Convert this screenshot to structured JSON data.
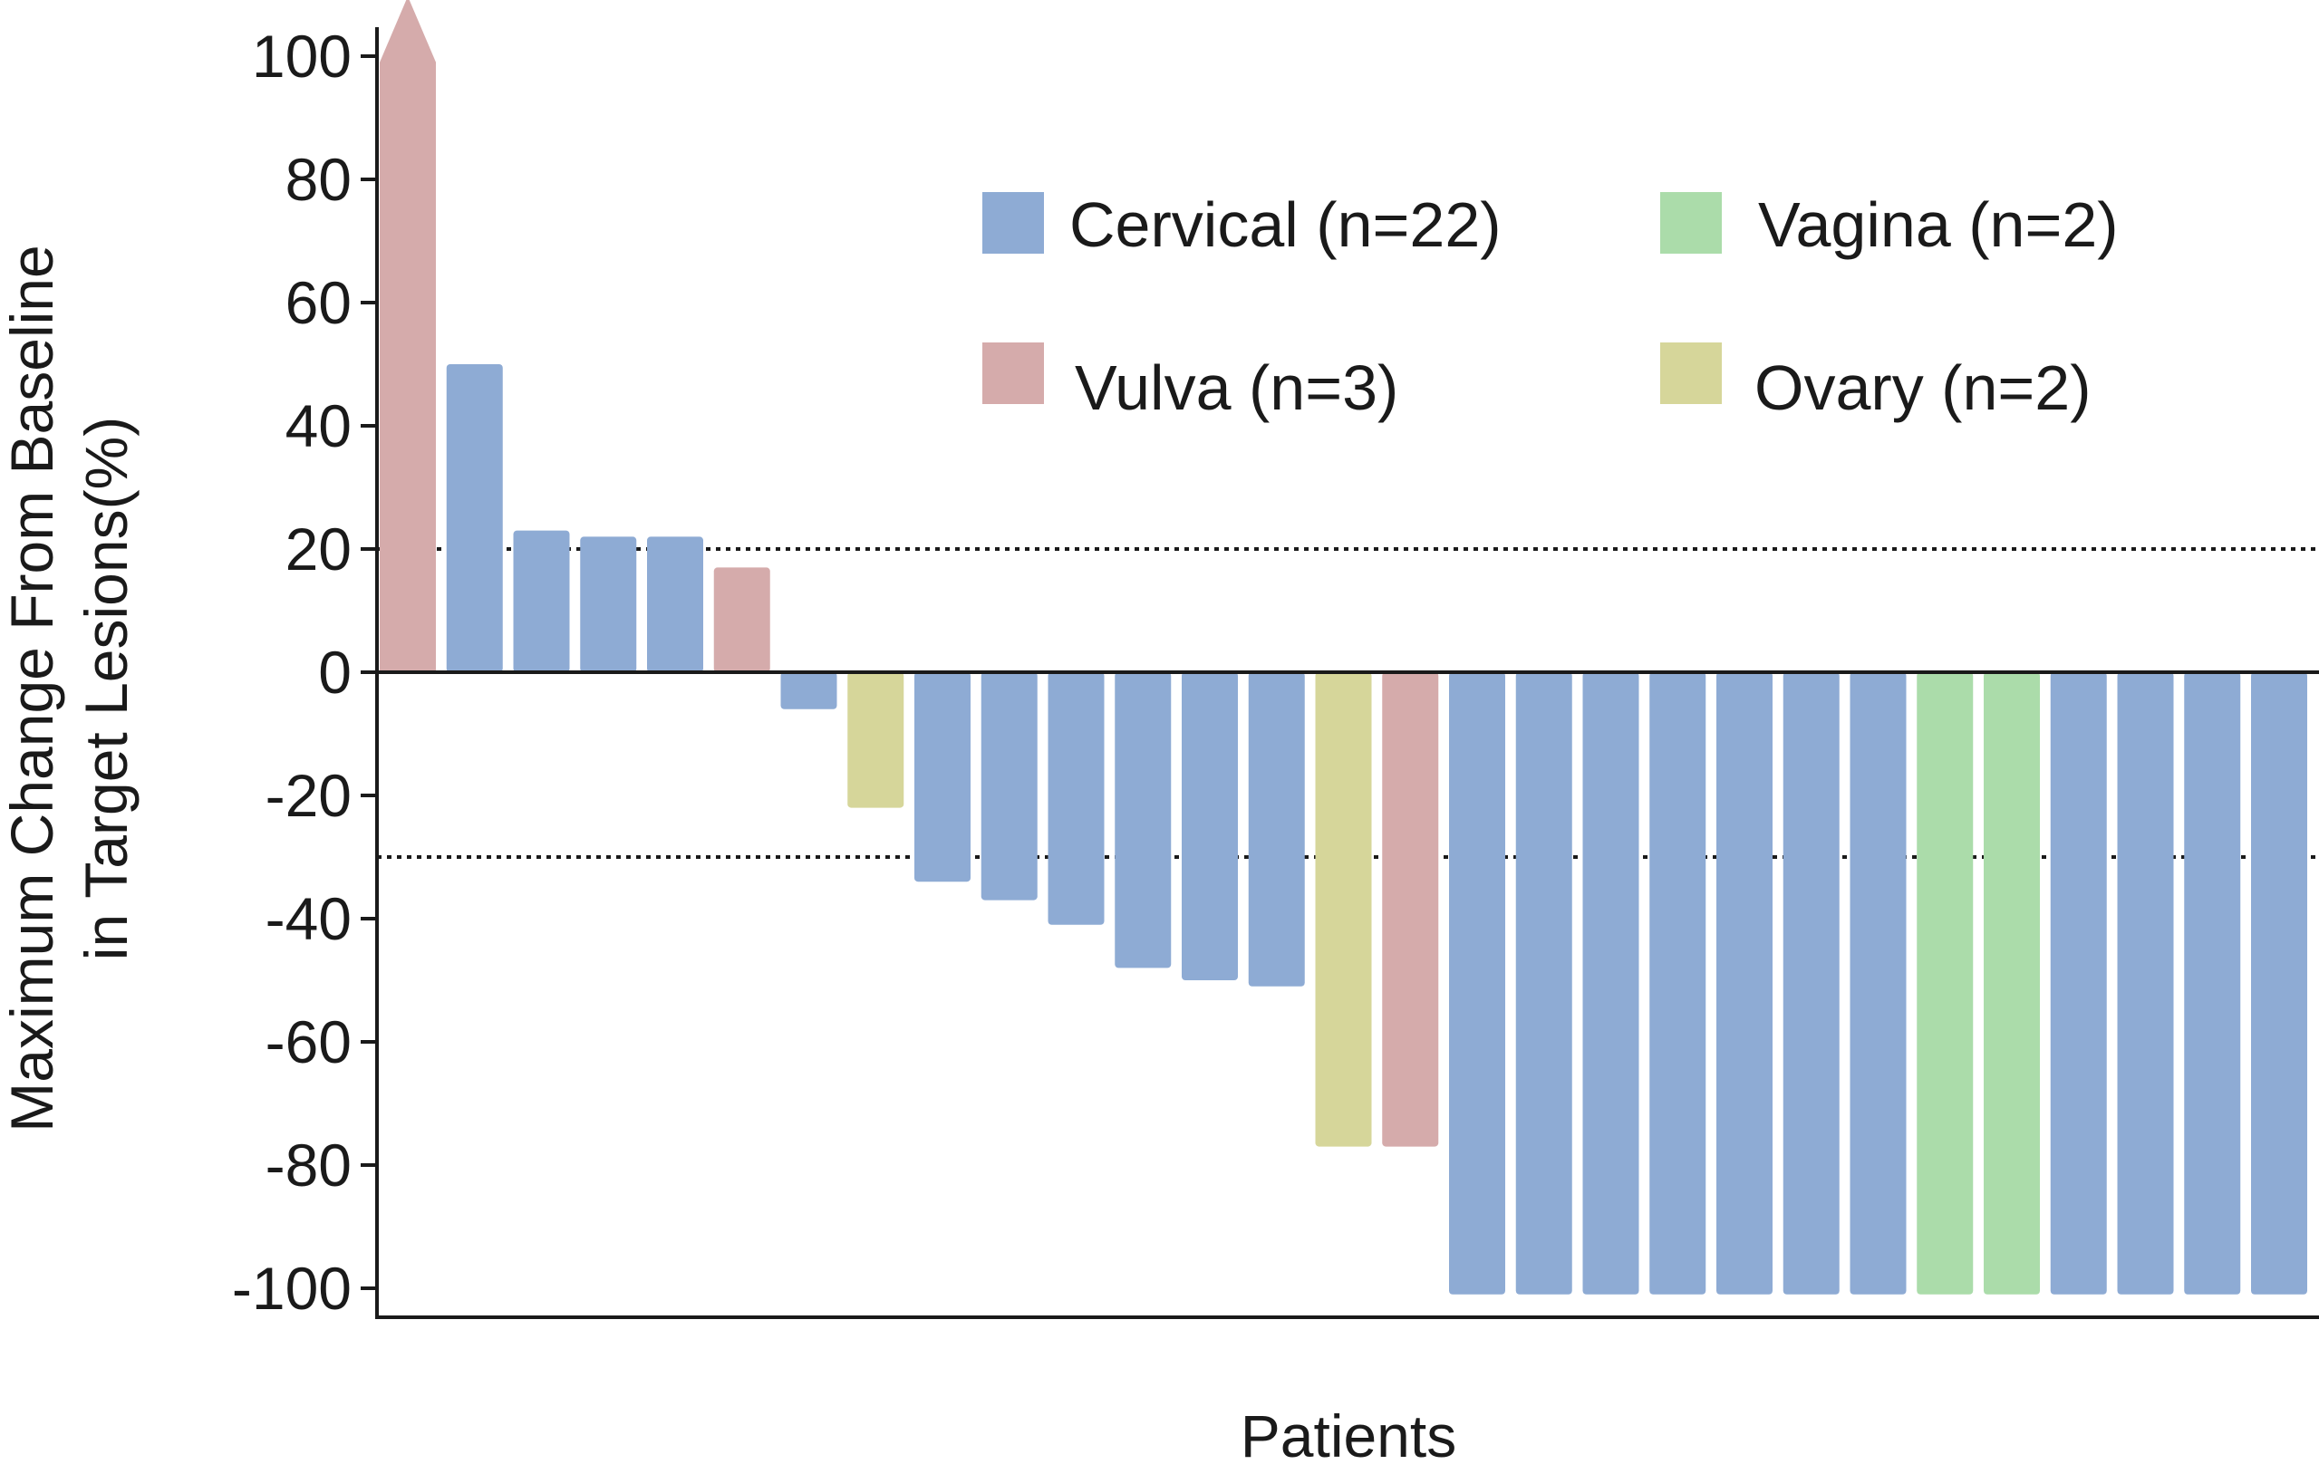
{
  "chart_data": {
    "type": "bar",
    "title": "",
    "xlabel": "Patients",
    "ylabel_lines": [
      "Maximum Change From Baseline",
      "in Target Lesions(%)"
    ],
    "ylim": [
      -105,
      100
    ],
    "yticks": [
      100,
      80,
      60,
      40,
      20,
      0,
      -20,
      -40,
      -60,
      -80,
      -100
    ],
    "ytick_labels": [
      "100",
      "80",
      "60",
      "40",
      "20",
      "0",
      "-20",
      "-40",
      "-60",
      "-80",
      "-100"
    ],
    "reference_lines": [
      20,
      -30
    ],
    "legend": [
      {
        "label": "Cervical (n=22)",
        "color": "#8eabd4"
      },
      {
        "label": "Vagina (n=2)",
        "color": "#abdcaa"
      },
      {
        "label": "Vulva (n=3)",
        "color": "#d5abab"
      },
      {
        "label": "Ovary (n=2)",
        "color": "#d6d69a"
      }
    ],
    "colors": {
      "Cervical": "#8eabd4",
      "Vulva": "#d5abab",
      "Vagina": "#abdcaa",
      "Ovary": "#d6d69a"
    },
    "bars": [
      {
        "value": 100,
        "group": "Vulva",
        "arrow": true
      },
      {
        "value": 50,
        "group": "Cervical"
      },
      {
        "value": 23,
        "group": "Cervical"
      },
      {
        "value": 22,
        "group": "Cervical"
      },
      {
        "value": 22,
        "group": "Cervical"
      },
      {
        "value": 17,
        "group": "Vulva"
      },
      {
        "value": -6,
        "group": "Cervical"
      },
      {
        "value": -22,
        "group": "Ovary"
      },
      {
        "value": -34,
        "group": "Cervical"
      },
      {
        "value": -37,
        "group": "Cervical"
      },
      {
        "value": -41,
        "group": "Cervical"
      },
      {
        "value": -48,
        "group": "Cervical"
      },
      {
        "value": -50,
        "group": "Cervical"
      },
      {
        "value": -51,
        "group": "Cervical"
      },
      {
        "value": -77,
        "group": "Ovary"
      },
      {
        "value": -77,
        "group": "Vulva"
      },
      {
        "value": -101,
        "group": "Cervical"
      },
      {
        "value": -101,
        "group": "Cervical"
      },
      {
        "value": -101,
        "group": "Cervical"
      },
      {
        "value": -101,
        "group": "Cervical"
      },
      {
        "value": -101,
        "group": "Cervical"
      },
      {
        "value": -101,
        "group": "Cervical"
      },
      {
        "value": -101,
        "group": "Cervical"
      },
      {
        "value": -101,
        "group": "Vagina"
      },
      {
        "value": -101,
        "group": "Vagina"
      },
      {
        "value": -101,
        "group": "Cervical"
      },
      {
        "value": -101,
        "group": "Cervical"
      },
      {
        "value": -101,
        "group": "Cervical"
      },
      {
        "value": -101,
        "group": "Cervical"
      }
    ]
  }
}
